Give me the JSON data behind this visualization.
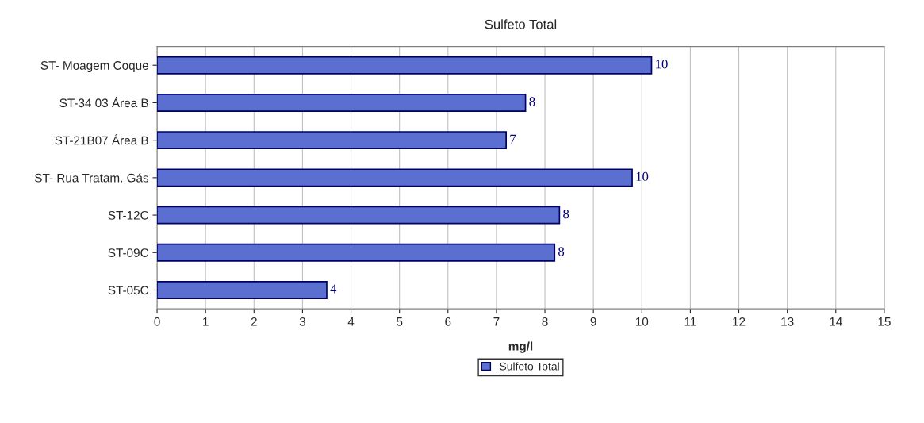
{
  "chart_data": {
    "type": "bar",
    "orientation": "horizontal",
    "title": "Sulfeto Total",
    "xlabel": "mg/l",
    "categories": [
      "ST- Moagem Coque",
      "ST-34 03 Área B",
      "ST-21B07 Área B",
      "ST- Rua Tratam. Gás",
      "ST-12C",
      "ST-09C",
      "ST-05C"
    ],
    "series": [
      {
        "name": "Sulfeto Total",
        "color": "#5a6fd0",
        "values": [
          10.2,
          7.6,
          7.2,
          9.8,
          8.3,
          8.2,
          3.5
        ],
        "value_labels": [
          "10",
          "8",
          "7",
          "10",
          "8",
          "8",
          "4"
        ]
      }
    ],
    "xlim": [
      0,
      15
    ],
    "xticks": [
      0,
      1,
      2,
      3,
      4,
      5,
      6,
      7,
      8,
      9,
      10,
      11,
      12,
      13,
      14,
      15
    ],
    "grid": "x",
    "legend": "bottom"
  }
}
